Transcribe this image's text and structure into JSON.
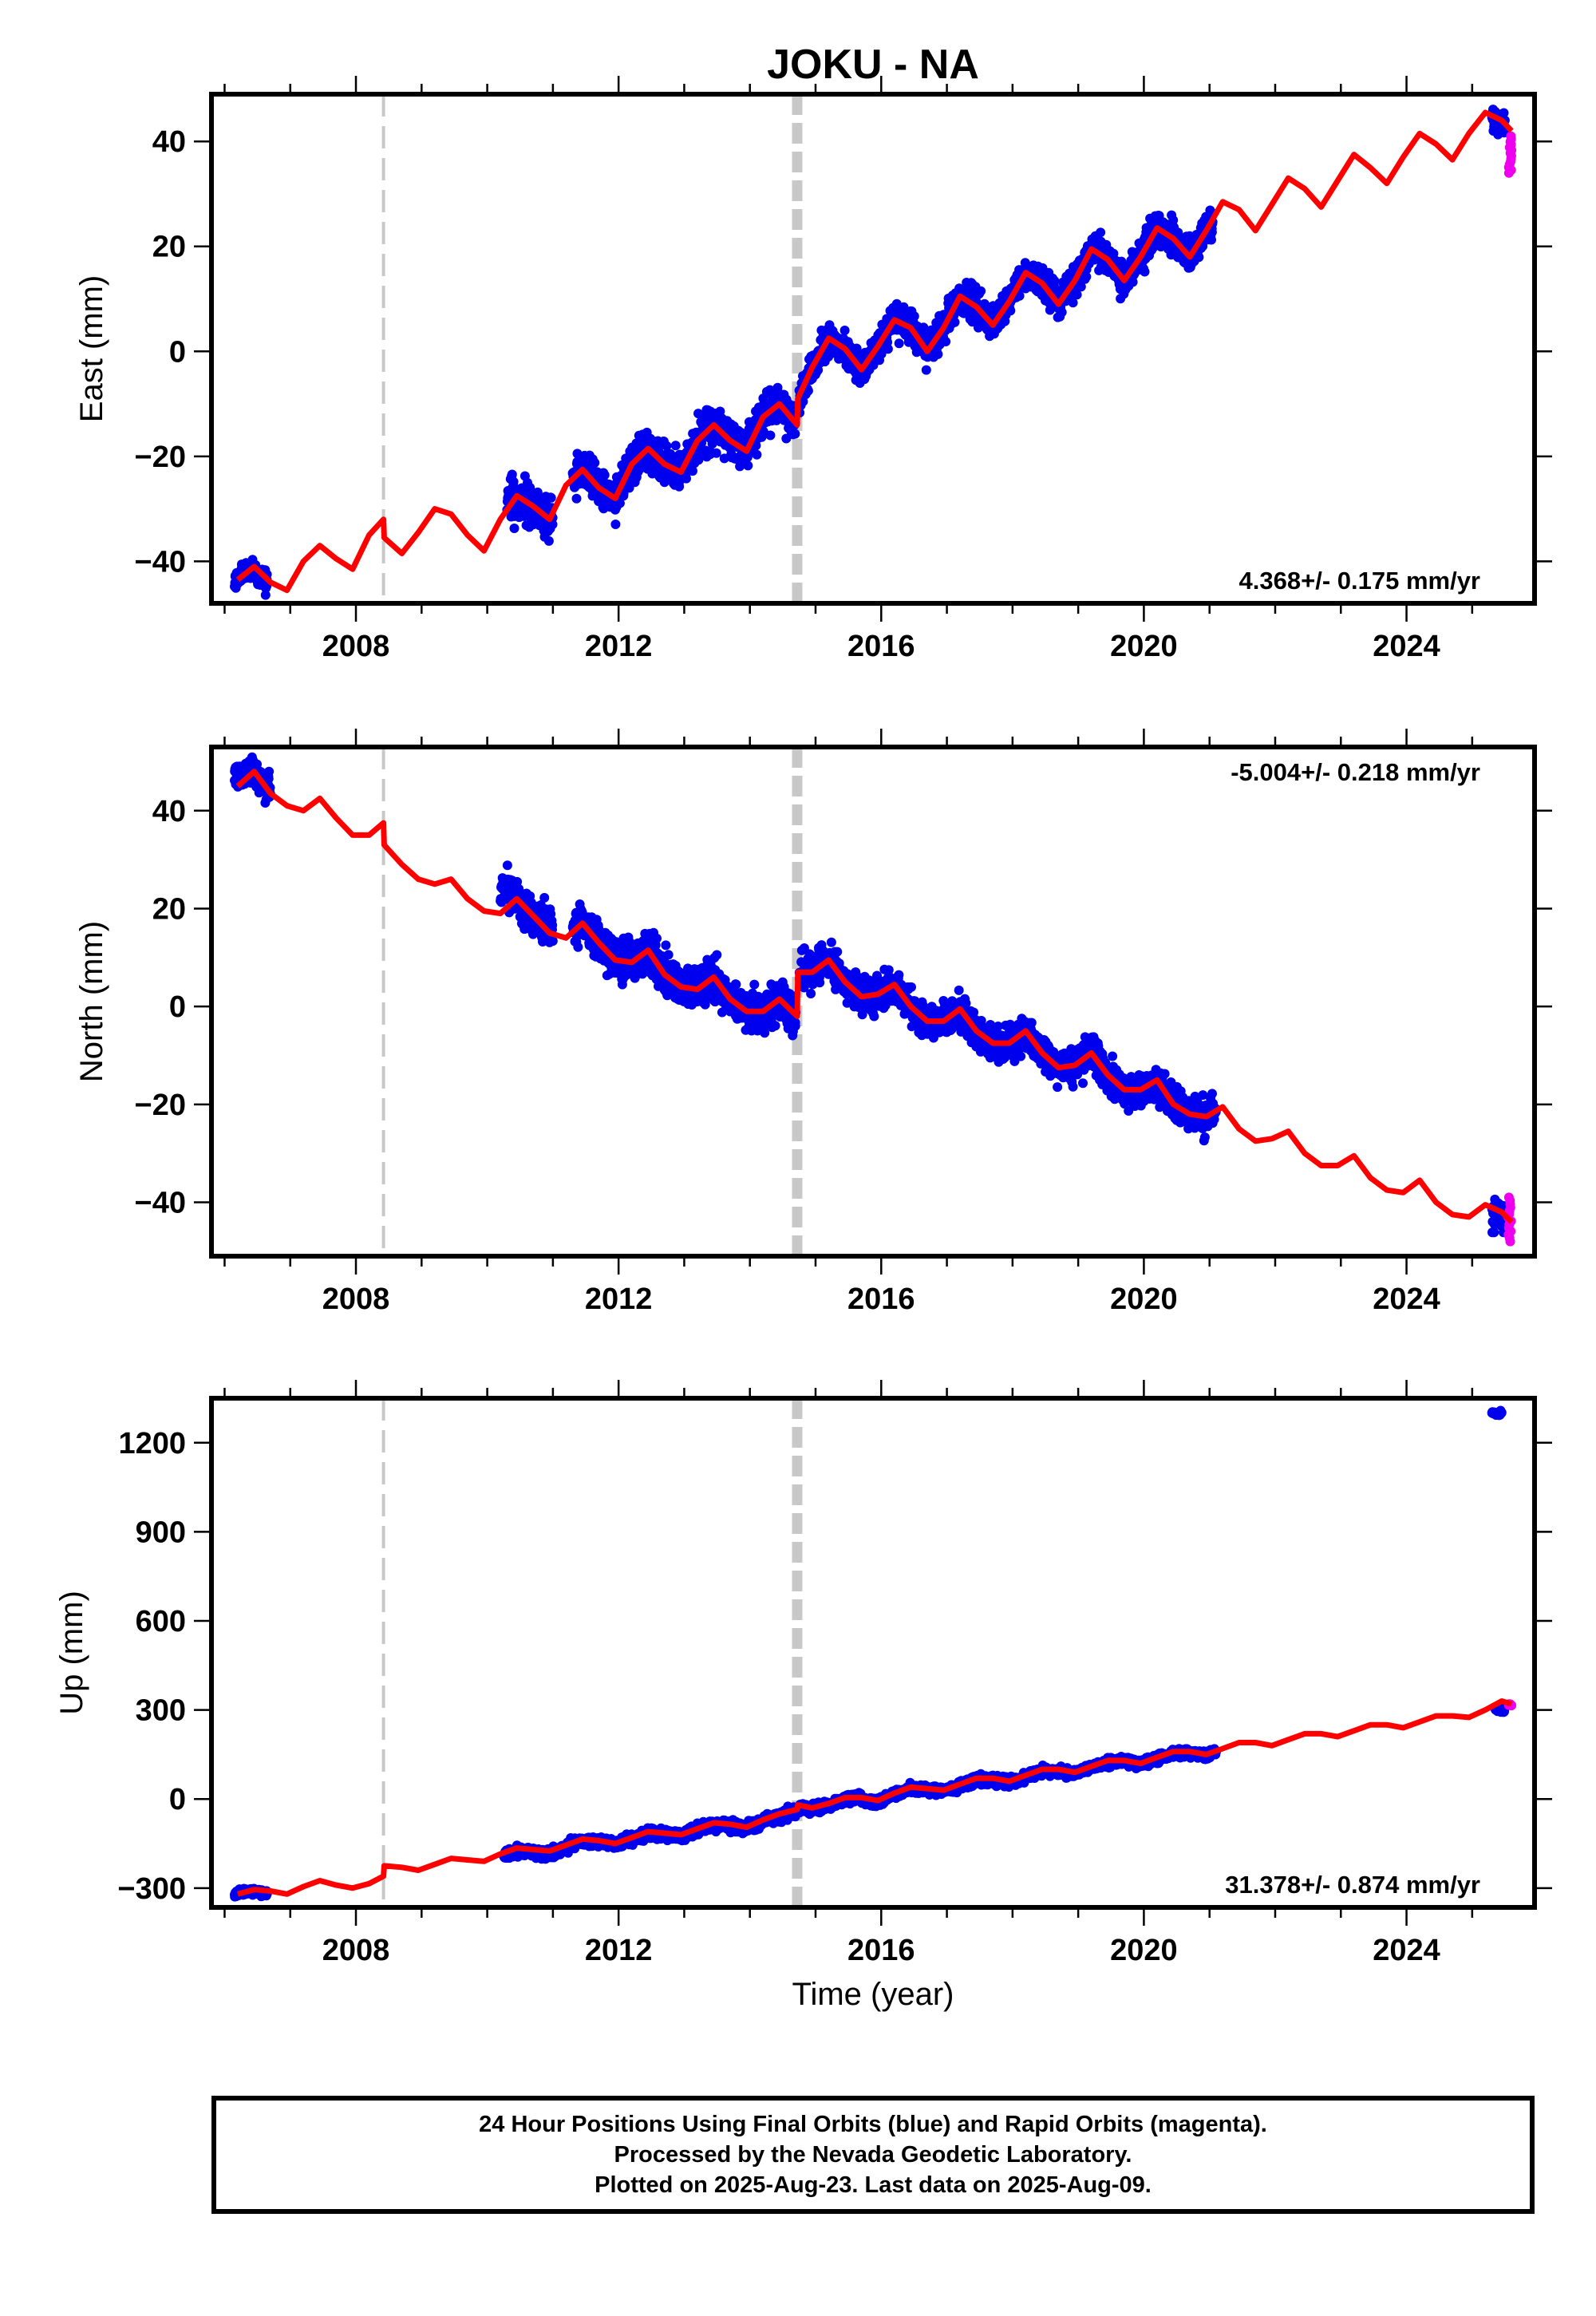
{
  "title": "JOKU - NA",
  "xlabel": "Time (year)",
  "colors": {
    "final_orbits": "#0000ee",
    "rapid_orbits": "#ee00ee",
    "model": "#ff0000",
    "event_line": "#c8c8c8",
    "frame": "#000000"
  },
  "footer": {
    "line1": "24 Hour Positions Using Final Orbits (blue) and Rapid Orbits (magenta).",
    "line2": "Processed by the Nevada Geodetic Laboratory.",
    "line3": "Plotted on 2025-Aug-23. Last data on 2025-Aug-09."
  },
  "chart_data": [
    {
      "type": "scatter",
      "component": "east",
      "ylabel": "East (mm)",
      "rate_label": "4.368+/- 0.175 mm/yr",
      "rate_position": "bottom-right",
      "xlim": [
        2005.8,
        2025.95
      ],
      "ylim": [
        -48,
        49
      ],
      "xticks": [
        2008,
        2012,
        2016,
        2020,
        2024
      ],
      "yticks": [
        -40,
        -20,
        0,
        20,
        40
      ],
      "event_lines": [
        {
          "x": 2008.42,
          "style": "thin-dashed"
        },
        {
          "x": 2014.72,
          "style": "thick-dashed"
        }
      ],
      "model_line": {
        "x": [
          2006.2,
          2006.45,
          2006.7,
          2006.95,
          2007.2,
          2007.45,
          2007.7,
          2007.95,
          2008.2,
          2008.42,
          2008.43,
          2008.7,
          2008.95,
          2009.2,
          2009.45,
          2009.7,
          2009.95,
          2010.2,
          2010.45,
          2010.7,
          2010.95,
          2011.2,
          2011.45,
          2011.7,
          2011.95,
          2012.2,
          2012.45,
          2012.7,
          2012.95,
          2013.2,
          2013.45,
          2013.7,
          2013.95,
          2014.2,
          2014.45,
          2014.72,
          2014.73,
          2014.95,
          2015.2,
          2015.45,
          2015.7,
          2015.95,
          2016.2,
          2016.45,
          2016.7,
          2016.95,
          2017.2,
          2017.45,
          2017.7,
          2017.95,
          2018.2,
          2018.45,
          2018.7,
          2018.95,
          2019.2,
          2019.45,
          2019.7,
          2019.95,
          2020.2,
          2020.45,
          2020.7,
          2020.95,
          2021.2,
          2021.45,
          2021.7,
          2021.95,
          2022.2,
          2022.45,
          2022.7,
          2022.95,
          2023.2,
          2023.45,
          2023.7,
          2023.95,
          2024.2,
          2024.45,
          2024.7,
          2024.95,
          2025.2,
          2025.45,
          2025.6
        ],
        "y": [
          -43.5,
          -41,
          -44,
          -45.5,
          -40,
          -37,
          -39.5,
          -41.5,
          -35,
          -32,
          -35.5,
          -38.5,
          -34.5,
          -30,
          -31,
          -35,
          -38,
          -32,
          -27.5,
          -29.5,
          -32,
          -25.5,
          -22.5,
          -26,
          -28,
          -21.5,
          -18.5,
          -21.5,
          -23,
          -17,
          -14,
          -17,
          -19,
          -12.5,
          -10,
          -14,
          -9,
          -3,
          2.5,
          0.5,
          -3.5,
          1,
          6,
          4.5,
          0,
          4.5,
          10.5,
          8.5,
          5,
          9.5,
          15,
          13,
          9,
          13.5,
          19.5,
          17.5,
          13.5,
          18,
          23.5,
          21.5,
          18,
          23,
          28.5,
          27,
          23,
          28,
          33,
          31,
          27.5,
          32.5,
          37.5,
          35,
          32,
          37,
          41.5,
          39.5,
          36.5,
          41.5,
          45.5,
          44,
          42
        ]
      },
      "final_clusters": [
        {
          "x": [
            2006.15,
            2006.65
          ],
          "center": [
            -43.5,
            -41,
            -44
          ],
          "spread": 2
        },
        {
          "x": [
            2010.3,
            2011.0
          ],
          "center": [
            -27.5,
            -29.5,
            -32
          ],
          "spread": 4
        },
        {
          "x": [
            2011.3,
            2014.7
          ],
          "trend_from_model": true,
          "spread": 3.5
        },
        {
          "x": [
            2014.75,
            2021.05
          ],
          "trend_from_model": true,
          "spread": 3
        },
        {
          "x": [
            2025.3,
            2025.5
          ],
          "center": [
            44,
            43
          ],
          "spread": 2.5
        }
      ],
      "rapid_points": {
        "x": [
          2025.55,
          2025.6
        ],
        "y": [
          34,
          41
        ]
      }
    },
    {
      "type": "scatter",
      "component": "north",
      "ylabel": "North (mm)",
      "rate_label": "-5.004+/- 0.218 mm/yr",
      "rate_position": "top-right",
      "xlim": [
        2005.8,
        2025.95
      ],
      "ylim": [
        -51,
        53
      ],
      "xticks": [
        2008,
        2012,
        2016,
        2020,
        2024
      ],
      "yticks": [
        -40,
        -20,
        0,
        20,
        40
      ],
      "event_lines": [
        {
          "x": 2008.42,
          "style": "thin-dashed"
        },
        {
          "x": 2014.72,
          "style": "thick-dashed"
        }
      ],
      "model_line": {
        "x": [
          2006.2,
          2006.45,
          2006.7,
          2006.95,
          2007.2,
          2007.45,
          2007.7,
          2007.95,
          2008.2,
          2008.42,
          2008.43,
          2008.7,
          2008.95,
          2009.2,
          2009.45,
          2009.7,
          2009.95,
          2010.2,
          2010.45,
          2010.7,
          2010.95,
          2011.2,
          2011.45,
          2011.7,
          2011.95,
          2012.2,
          2012.45,
          2012.7,
          2012.95,
          2013.2,
          2013.45,
          2013.7,
          2013.95,
          2014.2,
          2014.45,
          2014.72,
          2014.73,
          2014.95,
          2015.2,
          2015.45,
          2015.7,
          2015.95,
          2016.2,
          2016.45,
          2016.7,
          2016.95,
          2017.2,
          2017.45,
          2017.7,
          2017.95,
          2018.2,
          2018.45,
          2018.7,
          2018.95,
          2019.2,
          2019.45,
          2019.7,
          2019.95,
          2020.2,
          2020.45,
          2020.7,
          2020.95,
          2021.2,
          2021.45,
          2021.7,
          2021.95,
          2022.2,
          2022.45,
          2022.7,
          2022.95,
          2023.2,
          2023.45,
          2023.7,
          2023.95,
          2024.2,
          2024.45,
          2024.7,
          2024.95,
          2025.2,
          2025.45,
          2025.6
        ],
        "y": [
          45,
          48,
          43.5,
          41,
          40,
          42.5,
          38.5,
          35,
          35,
          37.5,
          33,
          29,
          26,
          25,
          26,
          22,
          19.5,
          19,
          22,
          18.5,
          15,
          14,
          17,
          13,
          9.5,
          9,
          11.5,
          6.5,
          4,
          3.5,
          6,
          1.5,
          -1,
          -1,
          1.5,
          -2,
          7,
          7,
          9.5,
          5,
          2,
          2.5,
          4.5,
          0,
          -3,
          -3,
          -0.5,
          -5,
          -7.5,
          -7.5,
          -5,
          -9.5,
          -12.5,
          -12,
          -9.5,
          -14,
          -17,
          -17,
          -15,
          -20,
          -22,
          -22.5,
          -20.5,
          -25,
          -27.5,
          -27,
          -25.5,
          -30,
          -32.5,
          -32.5,
          -30.5,
          -35,
          -37.5,
          -38,
          -35.5,
          -40,
          -42.5,
          -43,
          -40.5,
          -42,
          -44
        ]
      },
      "final_clusters": [
        {
          "x": [
            2006.15,
            2006.7
          ],
          "center": [
            47,
            48,
            44
          ],
          "spread": 2.5
        },
        {
          "x": [
            2010.2,
            2011.0
          ],
          "center": [
            25,
            20,
            15
          ],
          "spread": 4
        },
        {
          "x": [
            2011.3,
            2014.7
          ],
          "trend_from_model": true,
          "spread": 4
        },
        {
          "x": [
            2014.75,
            2021.1
          ],
          "trend_from_model": true,
          "spread": 3.5
        },
        {
          "x": [
            2025.3,
            2025.5
          ],
          "center": [
            -42,
            -43
          ],
          "spread": 3
        }
      ],
      "rapid_points": {
        "x": [
          2025.55,
          2025.6
        ],
        "y": [
          -48,
          -39
        ]
      }
    },
    {
      "type": "scatter",
      "component": "up",
      "ylabel": "Up (mm)",
      "rate_label": "31.378+/- 0.874 mm/yr",
      "rate_position": "bottom-right",
      "xlim": [
        2005.8,
        2025.95
      ],
      "ylim": [
        -365,
        1350
      ],
      "xticks": [
        2008,
        2012,
        2016,
        2020,
        2024
      ],
      "yticks": [
        -300,
        0,
        300,
        600,
        900,
        1200
      ],
      "event_lines": [
        {
          "x": 2008.42,
          "style": "thin-dashed"
        },
        {
          "x": 2014.72,
          "style": "thick-dashed"
        }
      ],
      "model_line": {
        "x": [
          2006.2,
          2006.45,
          2006.7,
          2006.95,
          2007.2,
          2007.45,
          2007.7,
          2007.95,
          2008.2,
          2008.42,
          2008.43,
          2008.7,
          2008.95,
          2009.2,
          2009.45,
          2009.7,
          2009.95,
          2010.2,
          2010.45,
          2010.7,
          2010.95,
          2011.2,
          2011.45,
          2011.7,
          2011.95,
          2012.2,
          2012.45,
          2012.7,
          2012.95,
          2013.2,
          2013.45,
          2013.7,
          2013.95,
          2014.2,
          2014.45,
          2014.72,
          2014.73,
          2014.95,
          2015.2,
          2015.45,
          2015.7,
          2015.95,
          2016.2,
          2016.45,
          2016.7,
          2016.95,
          2017.2,
          2017.45,
          2017.7,
          2017.95,
          2018.2,
          2018.45,
          2018.7,
          2018.95,
          2019.2,
          2019.45,
          2019.7,
          2019.95,
          2020.2,
          2020.45,
          2020.7,
          2020.95,
          2021.2,
          2021.45,
          2021.7,
          2021.95,
          2022.2,
          2022.45,
          2022.7,
          2022.95,
          2023.2,
          2023.45,
          2023.7,
          2023.95,
          2024.2,
          2024.45,
          2024.7,
          2024.95,
          2025.2,
          2025.45,
          2025.6
        ],
        "y": [
          -320,
          -305,
          -310,
          -320,
          -295,
          -275,
          -290,
          -300,
          -285,
          -260,
          -225,
          -230,
          -240,
          -220,
          -200,
          -205,
          -210,
          -185,
          -165,
          -170,
          -175,
          -155,
          -135,
          -140,
          -150,
          -130,
          -110,
          -115,
          -120,
          -100,
          -80,
          -85,
          -95,
          -70,
          -50,
          -35,
          -20,
          -30,
          -15,
          5,
          5,
          -5,
          20,
          40,
          35,
          30,
          50,
          70,
          70,
          60,
          80,
          100,
          100,
          90,
          110,
          130,
          130,
          120,
          140,
          160,
          160,
          150,
          170,
          190,
          190,
          180,
          200,
          220,
          220,
          210,
          230,
          250,
          250,
          240,
          260,
          280,
          280,
          275,
          300,
          330,
          320
        ]
      },
      "final_clusters": [
        {
          "x": [
            2006.15,
            2006.65
          ],
          "center": [
            -322,
            -308,
            -318
          ],
          "spread": 12
        },
        {
          "x": [
            2010.25,
            2011.2
          ],
          "trend_from_model": true,
          "offset": -10,
          "spread": 15
        },
        {
          "x": [
            2011.2,
            2014.7
          ],
          "trend_from_model": true,
          "offset": -5,
          "spread": 18
        },
        {
          "x": [
            2014.75,
            2021.1
          ],
          "trend_from_model": true,
          "offset": -5,
          "spread": 15
        },
        {
          "x": [
            2025.35,
            2025.5
          ],
          "center": [
            305,
            300
          ],
          "spread": 8
        },
        {
          "x": [
            2025.3,
            2025.45
          ],
          "center": [
            1300,
            1300
          ],
          "spread": 6
        }
      ],
      "rapid_points": {
        "x": [
          2025.55,
          2025.6
        ],
        "y": [
          315,
          320
        ]
      }
    }
  ]
}
